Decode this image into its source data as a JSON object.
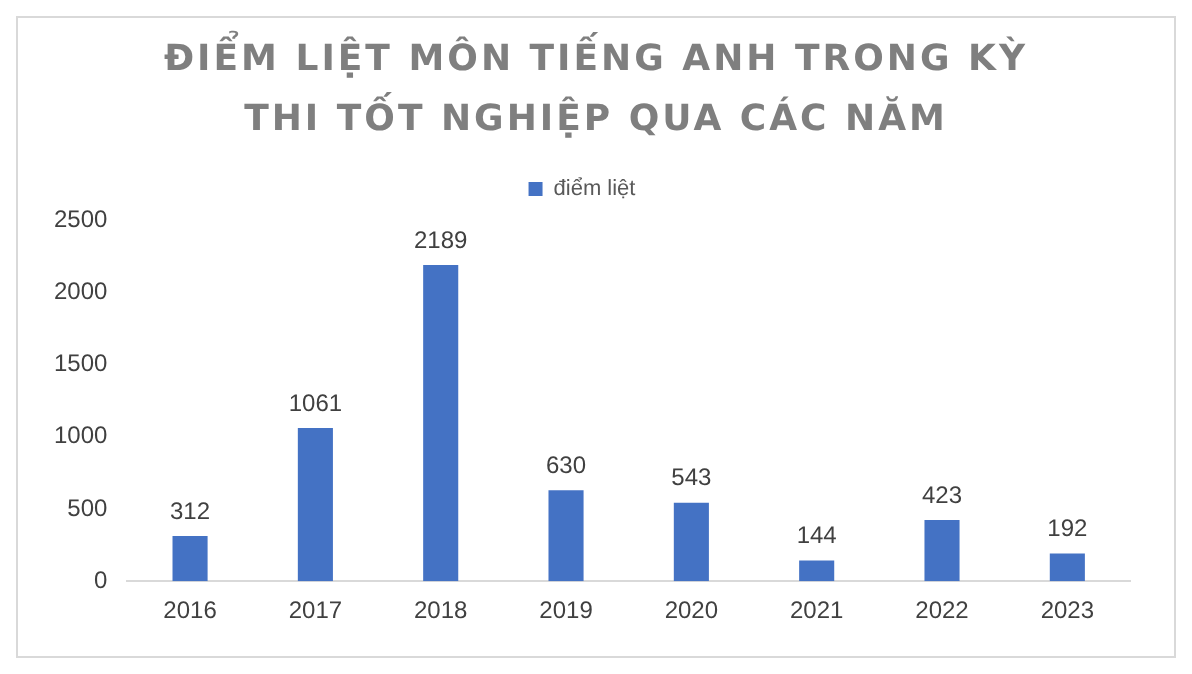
{
  "chart_data": {
    "type": "bar",
    "title": "ĐIỂM LIỆT MÔN TIẾNG ANH TRONG KỲ THI TỐT NGHIỆP QUA CÁC NĂM",
    "categories": [
      "2016",
      "2017",
      "2018",
      "2019",
      "2020",
      "2021",
      "2022",
      "2023"
    ],
    "series": [
      {
        "name": "điểm liệt",
        "color": "#4472c4",
        "values": [
          312,
          1061,
          2189,
          630,
          543,
          144,
          423,
          192
        ]
      }
    ],
    "ylim": [
      0,
      2500
    ],
    "yticks": [
      0,
      500,
      1000,
      1500,
      2000,
      2500
    ],
    "grid": false,
    "legend": "top",
    "data_labels": true
  }
}
